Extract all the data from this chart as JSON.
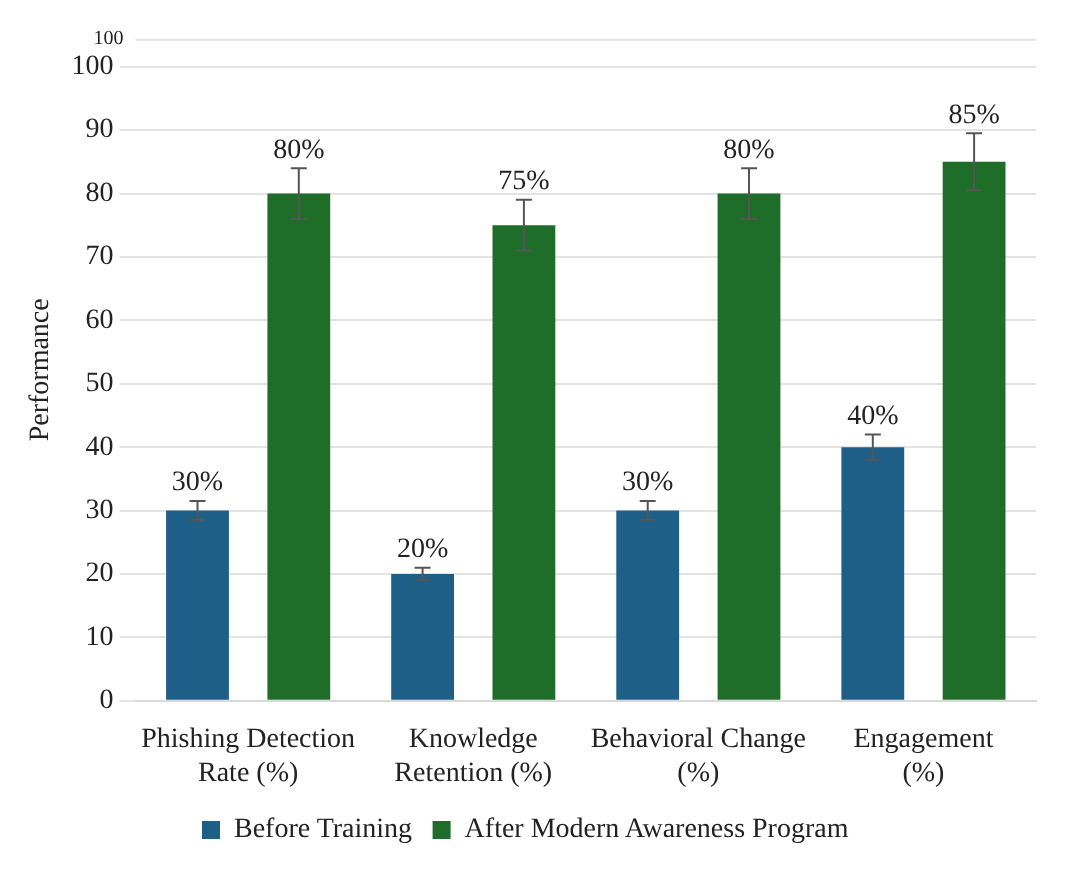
{
  "chart_data": {
    "type": "bar",
    "ylabel": "Performance",
    "categories": [
      "Phishing Detection Rate (%)",
      "Knowledge Retention (%)",
      "Behavioral Change (%)",
      "Engagement (%)"
    ],
    "series": [
      {
        "name": "Before Training",
        "color": "#1d5f87",
        "values": [
          30,
          20,
          30,
          40
        ],
        "errors": [
          1.5,
          1,
          1.5,
          2
        ],
        "value_labels": [
          "30%",
          "20%",
          "30%",
          "40%"
        ]
      },
      {
        "name": "After Modern Awareness Program",
        "color": "#1e6e2a",
        "values": [
          80,
          75,
          80,
          85
        ],
        "errors": [
          4,
          4,
          4,
          4.5
        ],
        "value_labels": [
          "80%",
          "75%",
          "80%",
          "85%"
        ]
      }
    ],
    "ylim": [
      0,
      104.4
    ],
    "yticks": [
      0,
      10,
      20,
      30,
      40,
      50,
      60,
      70,
      80,
      90,
      100
    ],
    "annotations": [
      "100"
    ],
    "grid": "y",
    "legend": "bottom"
  }
}
